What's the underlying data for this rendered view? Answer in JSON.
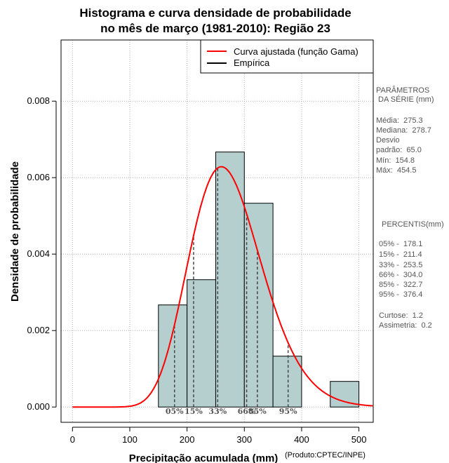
{
  "colors": {
    "bar_fill": "#b5cfcf",
    "fit_curve": "#ff0000",
    "empirical": "#000000",
    "grid": "#b0b0b0",
    "pct_line": "#444444"
  },
  "chart_data": {
    "type": "histogram",
    "title_line1": "Histograma e curva densidade de probabilidade",
    "title_line2": "no mês de março (1981-2010): Região 23",
    "xlabel": "Precipitação acumulada (mm)",
    "ylabel": "Densidade de probabilidade",
    "credit": "(Produto:CPTEC/INPE)",
    "xlim": [
      -20,
      525
    ],
    "ylim": [
      -0.0004,
      0.0096
    ],
    "xticks": [
      0,
      100,
      200,
      300,
      400,
      500
    ],
    "yticks": [
      0.0,
      0.002,
      0.004,
      0.006,
      0.008
    ],
    "ytick_labels": [
      "0.000",
      "0.002",
      "0.004",
      "0.006",
      "0.008"
    ],
    "bins": [
      {
        "x0": 150,
        "x1": 200,
        "density": 0.00267
      },
      {
        "x0": 200,
        "x1": 250,
        "density": 0.00333
      },
      {
        "x0": 250,
        "x1": 300,
        "density": 0.00667
      },
      {
        "x0": 300,
        "x1": 350,
        "density": 0.00533
      },
      {
        "x0": 350,
        "x1": 400,
        "density": 0.00133
      },
      {
        "x0": 400,
        "x1": 450,
        "density": 0.0
      },
      {
        "x0": 450,
        "x1": 500,
        "density": 0.00067
      }
    ],
    "gamma_fit": {
      "mean": 275.3,
      "sd": 65.0
    },
    "legend": [
      {
        "label": "Curva ajustada (função Gama)",
        "color": "#ff0000"
      },
      {
        "label": "Empírica",
        "color": "#000000"
      }
    ],
    "percentile_lines": [
      {
        "label": "05%",
        "value": 178.1
      },
      {
        "label": "15%",
        "value": 211.4
      },
      {
        "label": "33%",
        "value": 253.5
      },
      {
        "label": "66%",
        "value": 304.0
      },
      {
        "label": "85%",
        "value": 322.7
      },
      {
        "label": "95%",
        "value": 376.4
      }
    ]
  },
  "side_panel": {
    "params_title_1": "PARÂMETROS",
    "params_title_2": " DA SÉRIE (mm)",
    "media": "Média:  275.3",
    "mediana": "Mediana:  278.7",
    "desvio_1": "Desvio",
    "desvio_2": "padrão:  65.0",
    "min": "Mín:  154.8",
    "max": "Máx:  454.5",
    "pct_title": "PERCENTIS(mm)",
    "p05": "05% -  178.1",
    "p15": "15% -  211.4",
    "p33": "33% -  253.5",
    "p66": "66% -  304.0",
    "p85": "85% -  322.7",
    "p95": "95% -  376.4",
    "curtose": "Curtose:  1.2",
    "assimetria": "Assimetria:  0.2"
  }
}
